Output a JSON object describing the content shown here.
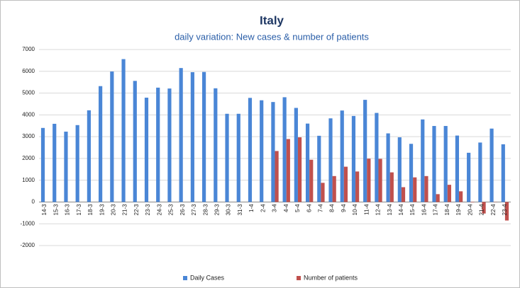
{
  "chart_data": {
    "type": "bar",
    "title": "Italy",
    "subtitle": "daily variation: New cases & number of patients",
    "categories": [
      "14-3",
      "15-3",
      "16-3",
      "17-3",
      "18-3",
      "19-3",
      "20-3",
      "21-3",
      "22-3",
      "23-3",
      "24-3",
      "25-3",
      "26-3",
      "27-3",
      "28-3",
      "29-3",
      "30-3",
      "31-3",
      "1-4",
      "2-4",
      "3-4",
      "4-4",
      "5-4",
      "6-4",
      "7-4",
      "8-4",
      "9-4",
      "10-4",
      "11-4",
      "12-4",
      "13-4",
      "14-4",
      "15-4",
      "16-4",
      "17-4",
      "18-4",
      "19-4",
      "20-4",
      "21-4",
      "22-4",
      "23-4"
    ],
    "series": [
      {
        "name": "Daily Cases",
        "color": "#4a86d6",
        "values": [
          3400,
          3590,
          3230,
          3530,
          4210,
          5320,
          5990,
          6560,
          5560,
          4790,
          5250,
          5210,
          6150,
          5960,
          5970,
          5220,
          4050,
          4050,
          4780,
          4670,
          4590,
          4810,
          4320,
          3600,
          3040,
          3840,
          4200,
          3950,
          4690,
          4090,
          3150,
          2970,
          2670,
          3790,
          3490,
          3490,
          3050,
          2260,
          2730,
          3370,
          2650
        ]
      },
      {
        "name": "Number of patients",
        "color": "#c0504d",
        "values": [
          null,
          null,
          null,
          null,
          null,
          null,
          null,
          null,
          null,
          null,
          null,
          null,
          null,
          null,
          null,
          null,
          null,
          null,
          null,
          null,
          2340,
          2890,
          2970,
          1940,
          880,
          1190,
          1620,
          1400,
          1990,
          1980,
          1360,
          680,
          1130,
          1190,
          360,
          790,
          490,
          -20,
          -530,
          -10,
          -850
        ]
      }
    ],
    "ylim": [
      -2000,
      7000
    ],
    "yticks": [
      -2000,
      -1000,
      0,
      1000,
      2000,
      3000,
      4000,
      5000,
      6000,
      7000
    ],
    "grid": true,
    "legend": "bottom"
  }
}
